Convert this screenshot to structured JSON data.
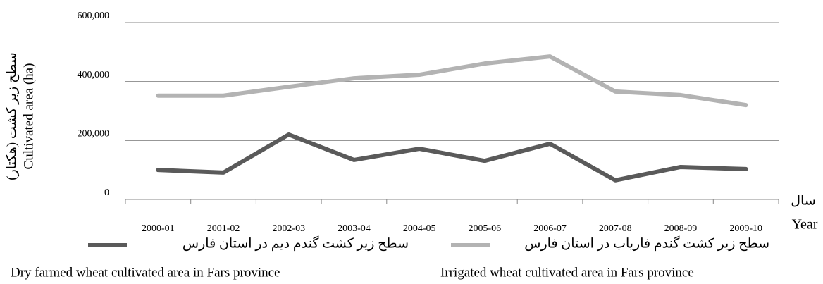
{
  "chart_data": {
    "type": "line",
    "y_label_fa": "سطح زیر کشت (هکتار)",
    "y_label": "Cultivated area (ha)",
    "x_label_fa": "سال",
    "x_label": "Year",
    "categories": [
      "2000-01",
      "2001-02",
      "2002-03",
      "2003-04",
      "2004-05",
      "2005-06",
      "2006-07",
      "2007-08",
      "2008-09",
      "2009-10"
    ],
    "series": [
      {
        "name_fa": "سطح زیر کشت گندم دیم در استان فارس",
        "name": "Dry farmed wheat cultivated area in Fars province",
        "color": "#5a5a5a",
        "values": [
          100000,
          91000,
          220000,
          134000,
          172000,
          131000,
          189000,
          65000,
          110000,
          103000
        ]
      },
      {
        "name_fa": "سطح زیر کشت گندم فاریاب در استان فارس",
        "name": "Irrigated wheat cultivated area in Fars province",
        "color": "#b3b3b3",
        "values": [
          352000,
          352000,
          382000,
          411000,
          423000,
          461000,
          485000,
          366000,
          354000,
          320000
        ]
      }
    ],
    "ylim": [
      0,
      600000
    ],
    "yticks": [
      0,
      {
        "value": 200000,
        "label": "200,000"
      },
      {
        "value": 400000,
        "label": "400,000"
      },
      {
        "value": 600000,
        "label": "600,000"
      }
    ],
    "grid": true
  }
}
